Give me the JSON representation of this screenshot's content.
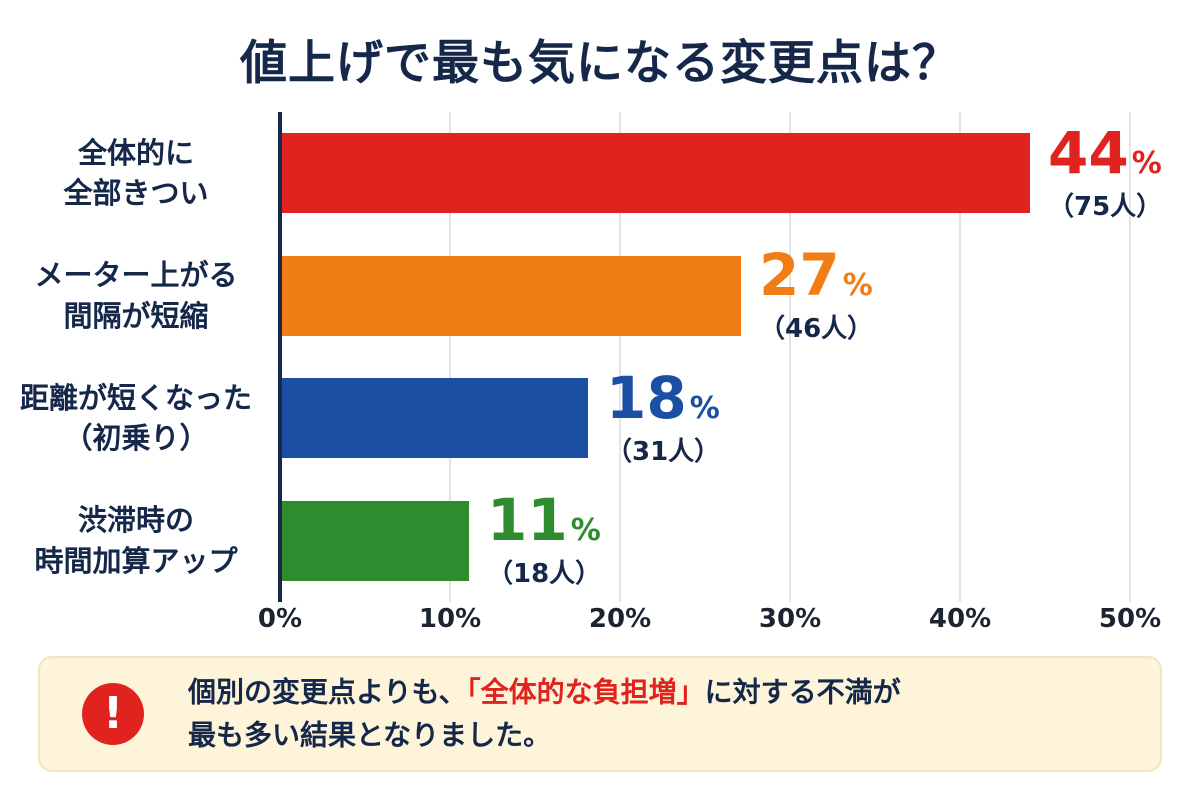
{
  "title": "値上げで最も気になる変更点は？",
  "chart_data": {
    "type": "bar",
    "orientation": "horizontal",
    "unit": "%",
    "xlim": [
      0,
      50
    ],
    "x_ticks": [
      "0%",
      "10%",
      "20%",
      "30%",
      "40%",
      "50%"
    ],
    "grid": true,
    "rows": [
      {
        "label_lines": [
          "全体的に",
          "全部きつい"
        ],
        "value": 44,
        "value_label": "44",
        "count_label": "（75人）",
        "color": "#e0231e"
      },
      {
        "label_lines": [
          "メーター上がる",
          "間隔が短縮"
        ],
        "value": 27,
        "value_label": "27",
        "count_label": "（46人）",
        "color": "#f07e15"
      },
      {
        "label_lines": [
          "距離が短くなった",
          "（初乗り）"
        ],
        "value": 18,
        "value_label": "18",
        "count_label": "（31人）",
        "color": "#1b4fa3"
      },
      {
        "label_lines": [
          "渋滞時の",
          "時間加算アップ"
        ],
        "value": 11,
        "value_label": "11",
        "count_label": "（18人）",
        "color": "#2e8b2e"
      }
    ]
  },
  "note": {
    "icon": "exclamation-icon",
    "icon_glyph": "!",
    "prefix": "個別の変更点よりも、",
    "highlight": "「全体的な負担増」",
    "suffix": "に対する不満が",
    "line2": "最も多い結果となりました。",
    "bg_color": "#fdf4d9",
    "highlight_color": "#e0231e"
  },
  "colors": {
    "text_dark": "#16284a",
    "axis": "#16284a",
    "gridline": "#e4e4e4",
    "background": "#ffffff"
  }
}
